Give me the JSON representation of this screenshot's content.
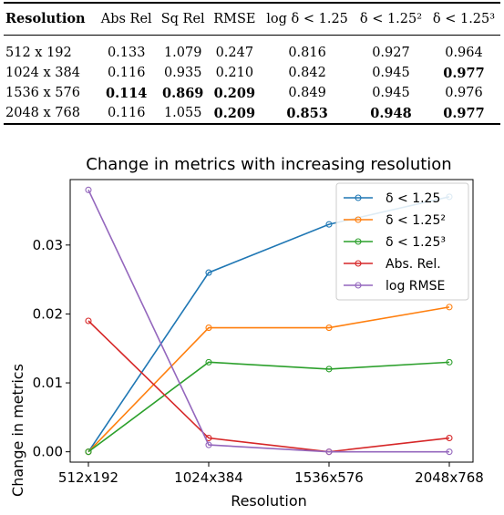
{
  "table": {
    "headers": [
      "Resolution",
      "Abs Rel",
      "Sq Rel",
      "RMSE",
      "log δ < 1.25",
      "δ < 1.25²",
      "δ < 1.25³"
    ],
    "rows": [
      {
        "cells": [
          "512 x 192",
          "0.133",
          "1.079",
          "0.247",
          "0.816",
          "0.927",
          "0.964"
        ],
        "bold": [
          false,
          false,
          false,
          false,
          false,
          false,
          false
        ]
      },
      {
        "cells": [
          "1024 x 384",
          "0.116",
          "0.935",
          "0.210",
          "0.842",
          "0.945",
          "0.977"
        ],
        "bold": [
          false,
          false,
          false,
          false,
          false,
          false,
          true
        ]
      },
      {
        "cells": [
          "1536 x 576",
          "0.114",
          "0.869",
          "0.209",
          "0.849",
          "0.945",
          "0.976"
        ],
        "bold": [
          false,
          true,
          true,
          true,
          false,
          false,
          false
        ]
      },
      {
        "cells": [
          "2048 x 768",
          "0.116",
          "1.055",
          "0.209",
          "0.853",
          "0.948",
          "0.977"
        ],
        "bold": [
          false,
          false,
          false,
          true,
          true,
          true,
          true
        ]
      }
    ]
  },
  "chart_data": {
    "type": "line",
    "title": "Change in metrics with increasing resolution",
    "xlabel": "Resolution",
    "ylabel": "Change in metrics",
    "categories": [
      "512x192",
      "1024x384",
      "1536x576",
      "2048x768"
    ],
    "ylim": [
      -0.0015,
      0.0395
    ],
    "yticks": [
      0.0,
      0.01,
      0.02,
      0.03
    ],
    "ytick_labels": [
      "0.00",
      "0.01",
      "0.02",
      "0.03"
    ],
    "legend_position": "top-right",
    "grid": false,
    "series": [
      {
        "name": "δ < 1.25",
        "color": "#1f77b4",
        "values": [
          0.0,
          0.026,
          0.033,
          0.037
        ]
      },
      {
        "name": "δ < 1.25²",
        "color": "#ff7f0e",
        "values": [
          0.0,
          0.018,
          0.018,
          0.021
        ]
      },
      {
        "name": "δ < 1.25³",
        "color": "#2ca02c",
        "values": [
          0.0,
          0.013,
          0.012,
          0.013
        ]
      },
      {
        "name": "Abs. Rel.",
        "color": "#d62728",
        "values": [
          0.019,
          0.002,
          0.0,
          0.002
        ]
      },
      {
        "name": "log RMSE",
        "color": "#9467bd",
        "values": [
          0.038,
          0.001,
          0.0,
          0.0
        ]
      }
    ]
  }
}
